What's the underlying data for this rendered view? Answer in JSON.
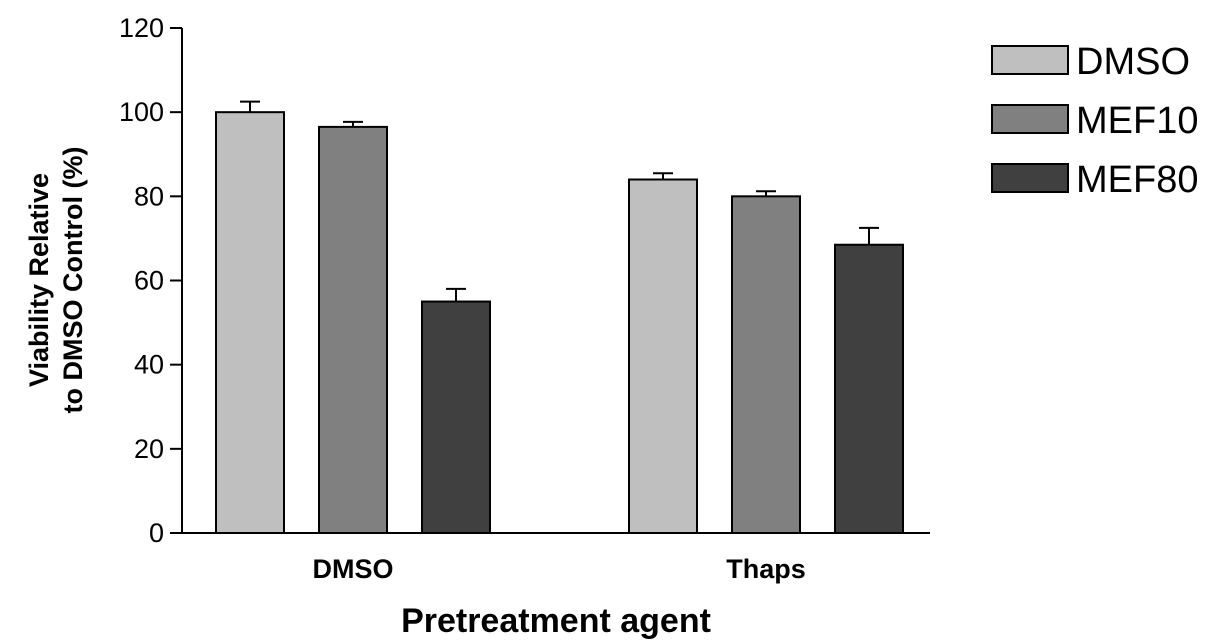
{
  "chart_data": {
    "type": "bar",
    "categories": [
      "DMSO",
      "Thaps"
    ],
    "series": [
      {
        "name": "DMSO",
        "values": [
          100,
          84
        ],
        "errors": [
          2.5,
          1.5
        ],
        "color": "#bfbfbf"
      },
      {
        "name": "MEF10",
        "values": [
          96.5,
          80
        ],
        "errors": [
          1.2,
          1.2
        ],
        "color": "#808080"
      },
      {
        "name": "MEF80",
        "values": [
          55,
          68.5
        ],
        "errors": [
          3.0,
          4.0
        ],
        "color": "#404040"
      }
    ],
    "ylabel_lines": [
      "Viability Relative",
      "to DMSO Control (%)"
    ],
    "xlabel": "Pretreatment agent",
    "ylim": [
      0,
      120
    ],
    "yticks": [
      "0",
      "20",
      "40",
      "60",
      "80",
      "100",
      "120"
    ],
    "grid": false,
    "legend_position": "top-right"
  }
}
